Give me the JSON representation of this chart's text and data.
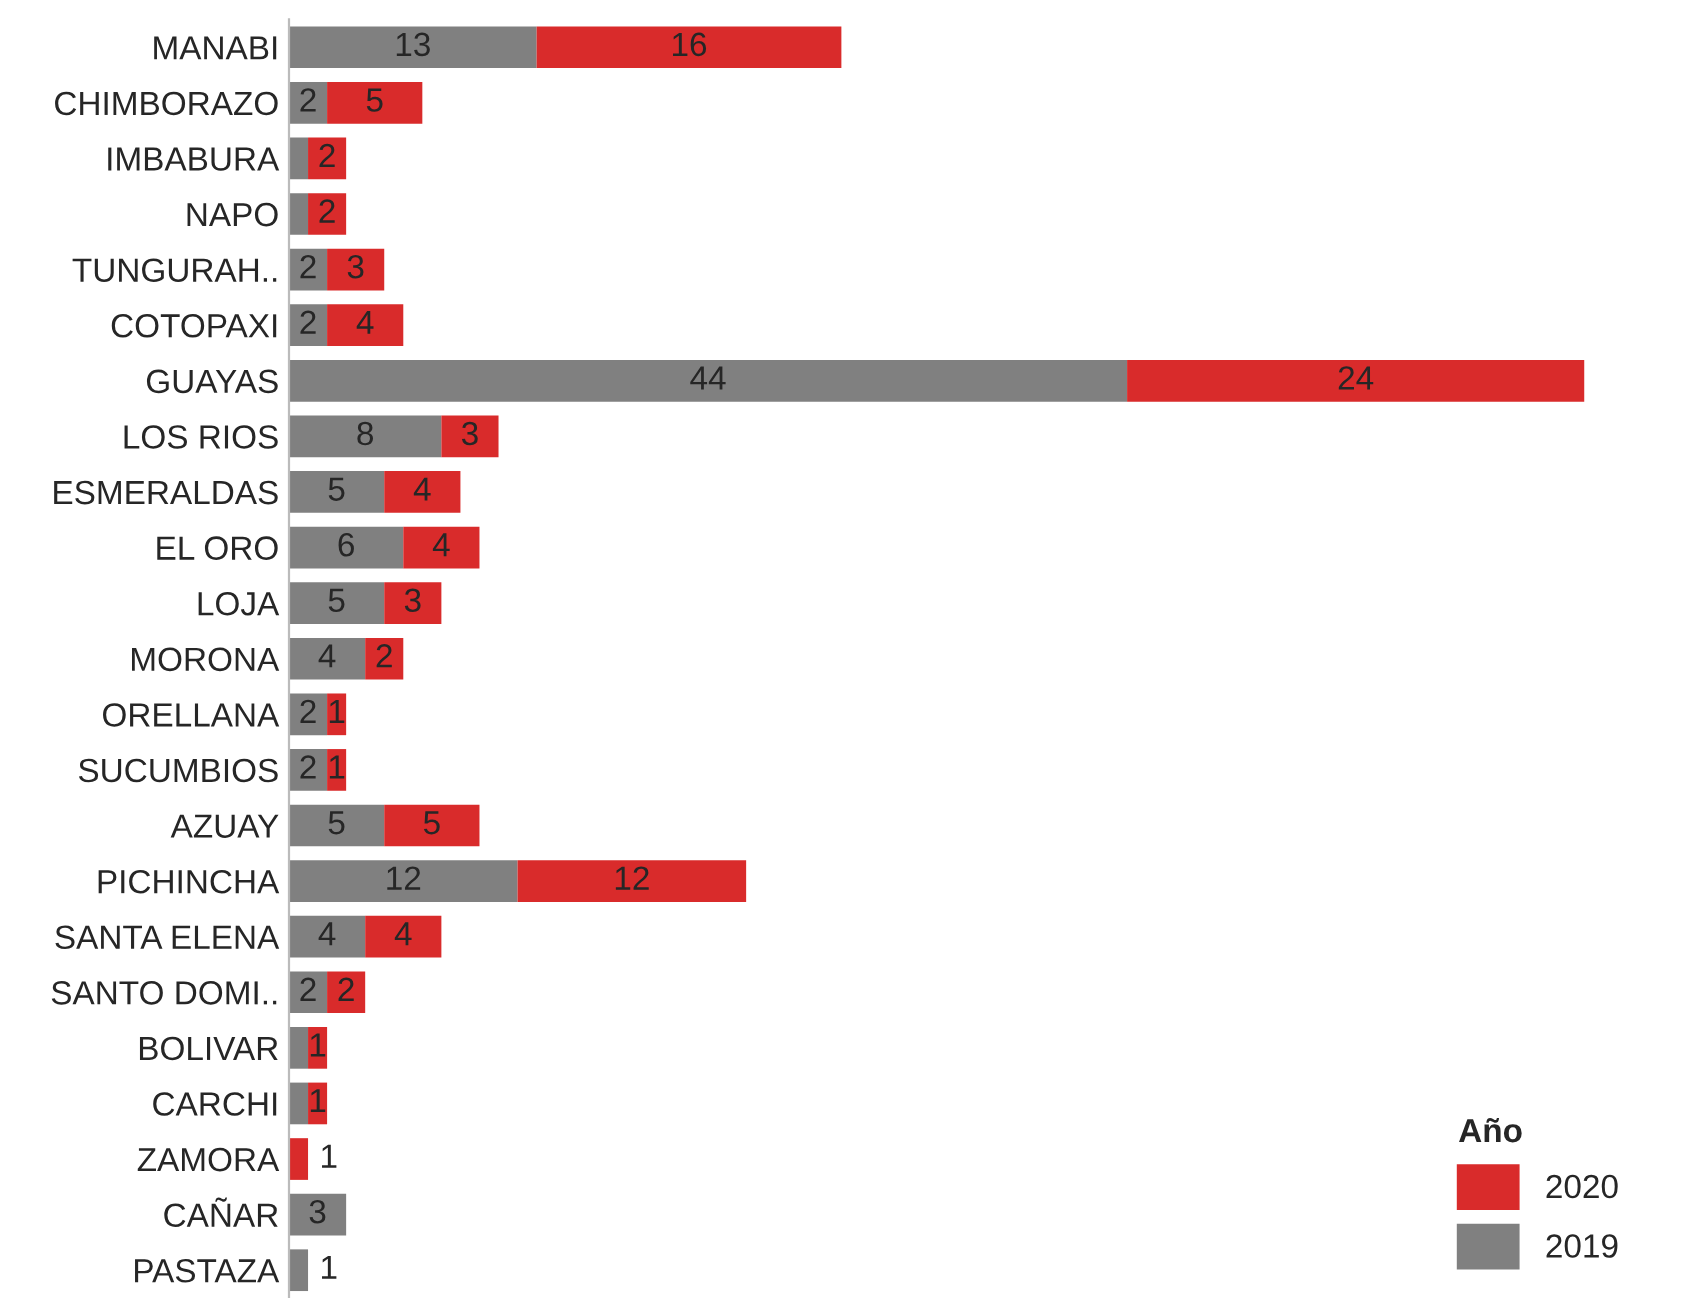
{
  "chart_data": {
    "type": "bar",
    "orientation": "horizontal",
    "stacked": true,
    "legend": "bottom right",
    "legend_title": "Año",
    "grid": false,
    "categories": [
      "MANABI",
      "CHIMBORAZO",
      "IMBABURA",
      "NAPO",
      "TUNGURAH..",
      "COTOPAXI",
      "GUAYAS",
      "LOS RIOS",
      "ESMERALDAS",
      "EL ORO",
      "LOJA",
      "MORONA",
      "ORELLANA",
      "SUCUMBIOS",
      "AZUAY",
      "PICHINCHA",
      "SANTA ELENA",
      "SANTO DOMI..",
      "BOLIVAR",
      "CARCHI",
      "ZAMORA",
      "CAÑAR",
      "PASTAZA"
    ],
    "series": [
      {
        "name": "2019",
        "color": "#808080",
        "values": [
          13,
          2,
          1,
          1,
          2,
          2,
          44,
          8,
          5,
          6,
          5,
          4,
          2,
          2,
          5,
          12,
          4,
          2,
          1,
          1,
          null,
          3,
          1
        ],
        "value_labels": [
          "13",
          "2",
          null,
          null,
          "2",
          "2",
          "44",
          "8",
          "5",
          "6",
          "5",
          "4",
          "2",
          "2",
          "5",
          "12",
          "4",
          "2",
          null,
          null,
          null,
          "3",
          "1"
        ]
      },
      {
        "name": "2020",
        "color": "#d92b2b",
        "values": [
          16,
          5,
          2,
          2,
          3,
          4,
          24,
          3,
          4,
          4,
          3,
          2,
          1,
          1,
          5,
          12,
          4,
          2,
          1,
          1,
          1,
          null,
          null
        ],
        "value_labels": [
          "16",
          "5",
          "2",
          "2",
          "3",
          "4",
          "24",
          "3",
          "4",
          "4",
          "3",
          "2",
          "1",
          "1",
          "5",
          "12",
          "4",
          "2",
          "1",
          "1",
          "1",
          null,
          null
        ]
      }
    ]
  }
}
